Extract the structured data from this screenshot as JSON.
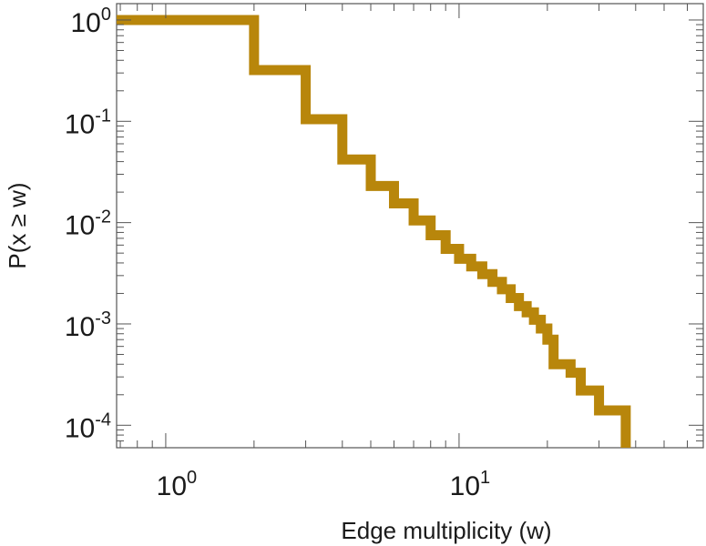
{
  "chart_data": {
    "type": "line",
    "subtype": "step (complementary cumulative distribution)",
    "xscale": "log",
    "yscale": "log",
    "xlabel": "Edge multiplicity (w)",
    "ylabel": "P(x ≥ w)",
    "xlim": [
      0.68,
      68
    ],
    "ylim": [
      6e-05,
      1.45
    ],
    "x_ticks": [
      {
        "value": 1,
        "base": "10",
        "exp": "0"
      },
      {
        "value": 10,
        "base": "10",
        "exp": "1"
      }
    ],
    "y_ticks": [
      {
        "value": 1,
        "base": "10",
        "exp": "0"
      },
      {
        "value": 0.1,
        "base": "10",
        "exp": "-1"
      },
      {
        "value": 0.01,
        "base": "10",
        "exp": "-2"
      },
      {
        "value": 0.001,
        "base": "10",
        "exp": "-3"
      },
      {
        "value": 0.0001,
        "base": "10",
        "exp": "-4"
      }
    ],
    "grid": false,
    "series": [
      {
        "color": "#b8860b",
        "x": [
          1,
          2,
          3,
          4,
          5,
          6,
          7,
          8,
          9,
          10,
          11,
          12,
          13,
          14,
          15,
          16,
          17,
          18,
          19,
          20,
          21,
          24,
          26,
          30,
          37
        ],
        "y": [
          1.0,
          0.32,
          0.105,
          0.042,
          0.023,
          0.0155,
          0.0105,
          0.0075,
          0.0055,
          0.0044,
          0.0037,
          0.0031,
          0.0026,
          0.0022,
          0.0018,
          0.0015,
          0.0013,
          0.0011,
          0.0009,
          0.0007,
          0.0004,
          0.00033,
          0.00022,
          0.00014,
          9e-05
        ]
      }
    ]
  }
}
